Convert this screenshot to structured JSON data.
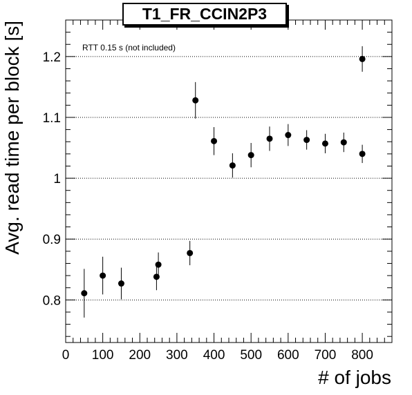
{
  "chart_data": {
    "type": "scatter",
    "title": "T1_FR_CCIN2P3",
    "xlabel": "# of jobs",
    "ylabel": "Avg. read time per block [s]",
    "annotation": "RTT 0.15 s (not included)",
    "xlim": [
      0,
      880
    ],
    "ylim": [
      0.73,
      1.26
    ],
    "xticks": [
      0,
      100,
      200,
      300,
      400,
      500,
      600,
      700,
      800
    ],
    "yticks": [
      0.8,
      0.9,
      1,
      1.1,
      1.2
    ],
    "ytick_labels": [
      "0.8",
      "0.9",
      "1",
      "1.1",
      "1.2"
    ],
    "grid": "horizontal-dotted",
    "series": [
      {
        "points": [
          {
            "x": 50,
            "y": 0.811,
            "err": 0.04
          },
          {
            "x": 100,
            "y": 0.84,
            "err": 0.031
          },
          {
            "x": 150,
            "y": 0.827,
            "err": 0.026
          },
          {
            "x": 245,
            "y": 0.838,
            "err": 0.022
          },
          {
            "x": 250,
            "y": 0.858,
            "err": 0.02
          },
          {
            "x": 335,
            "y": 0.877,
            "err": 0.02
          },
          {
            "x": 350,
            "y": 1.128,
            "err": 0.03
          },
          {
            "x": 400,
            "y": 1.061,
            "err": 0.023
          },
          {
            "x": 450,
            "y": 1.021,
            "err": 0.02
          },
          {
            "x": 500,
            "y": 1.038,
            "err": 0.02
          },
          {
            "x": 550,
            "y": 1.065,
            "err": 0.02
          },
          {
            "x": 600,
            "y": 1.071,
            "err": 0.018
          },
          {
            "x": 650,
            "y": 1.063,
            "err": 0.016
          },
          {
            "x": 700,
            "y": 1.057,
            "err": 0.016
          },
          {
            "x": 750,
            "y": 1.059,
            "err": 0.016
          },
          {
            "x": 800,
            "y": 1.04,
            "err": 0.015
          },
          {
            "x": 800,
            "y": 1.196,
            "err": 0.021
          }
        ]
      }
    ]
  }
}
